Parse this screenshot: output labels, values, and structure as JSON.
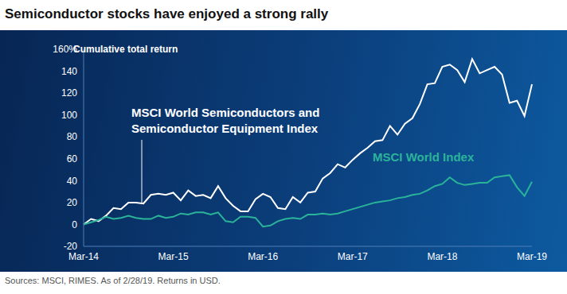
{
  "chart_data": {
    "type": "line",
    "title": "Semiconductor stocks have enjoyed a strong rally",
    "y_label": "Cumulative total return",
    "source": "Sources: MSCI, RIMES. As of 2/28/19. Returns in USD.",
    "categories": [
      "Mar-14",
      null,
      null,
      null,
      null,
      null,
      null,
      null,
      null,
      null,
      null,
      null,
      "Mar-15",
      null,
      null,
      null,
      null,
      null,
      null,
      null,
      null,
      null,
      null,
      null,
      "Mar-16",
      null,
      null,
      null,
      null,
      null,
      null,
      null,
      null,
      null,
      null,
      null,
      "Mar-17",
      null,
      null,
      null,
      null,
      null,
      null,
      null,
      null,
      null,
      null,
      null,
      "Mar-18",
      null,
      null,
      null,
      null,
      null,
      null,
      null,
      null,
      null,
      null,
      null,
      "Mar-19"
    ],
    "series": [
      {
        "name": "MSCI World Semiconductors and Semiconductor Equipment Index",
        "color": "#ffffff",
        "values": [
          0,
          5,
          3,
          8,
          15,
          14,
          20,
          20,
          19,
          27,
          28,
          27,
          29,
          22,
          31,
          26,
          27,
          24,
          35,
          24,
          17,
          12,
          12,
          23,
          28,
          25,
          15,
          14,
          25,
          20,
          29,
          30,
          42,
          47,
          55,
          52,
          59,
          65,
          70,
          76,
          77,
          90,
          82,
          92,
          97,
          110,
          128,
          129,
          144,
          146,
          141,
          130,
          151,
          138,
          141,
          144,
          137,
          111,
          113,
          99,
          128
        ]
      },
      {
        "name": "MSCI World Index",
        "color": "#2bb39a",
        "values": [
          0,
          2,
          4,
          7,
          5,
          6,
          8,
          6,
          5,
          5,
          8,
          6,
          7,
          10,
          9,
          11,
          11,
          9,
          11,
          3,
          2,
          7,
          7,
          6,
          -2,
          -1,
          3,
          5,
          6,
          5,
          9,
          9,
          10,
          9,
          10,
          12,
          14,
          16,
          18,
          20,
          21,
          22,
          24,
          25,
          27,
          28,
          31,
          35,
          37,
          43,
          38,
          36,
          37,
          38,
          38,
          43,
          44,
          45,
          34,
          26,
          39
        ]
      }
    ],
    "ylim": [
      -20,
      160
    ],
    "yticks": [
      -20,
      0,
      20,
      40,
      60,
      80,
      100,
      120,
      140,
      {
        "value": 160,
        "label": "160%"
      }
    ],
    "grid": false
  }
}
